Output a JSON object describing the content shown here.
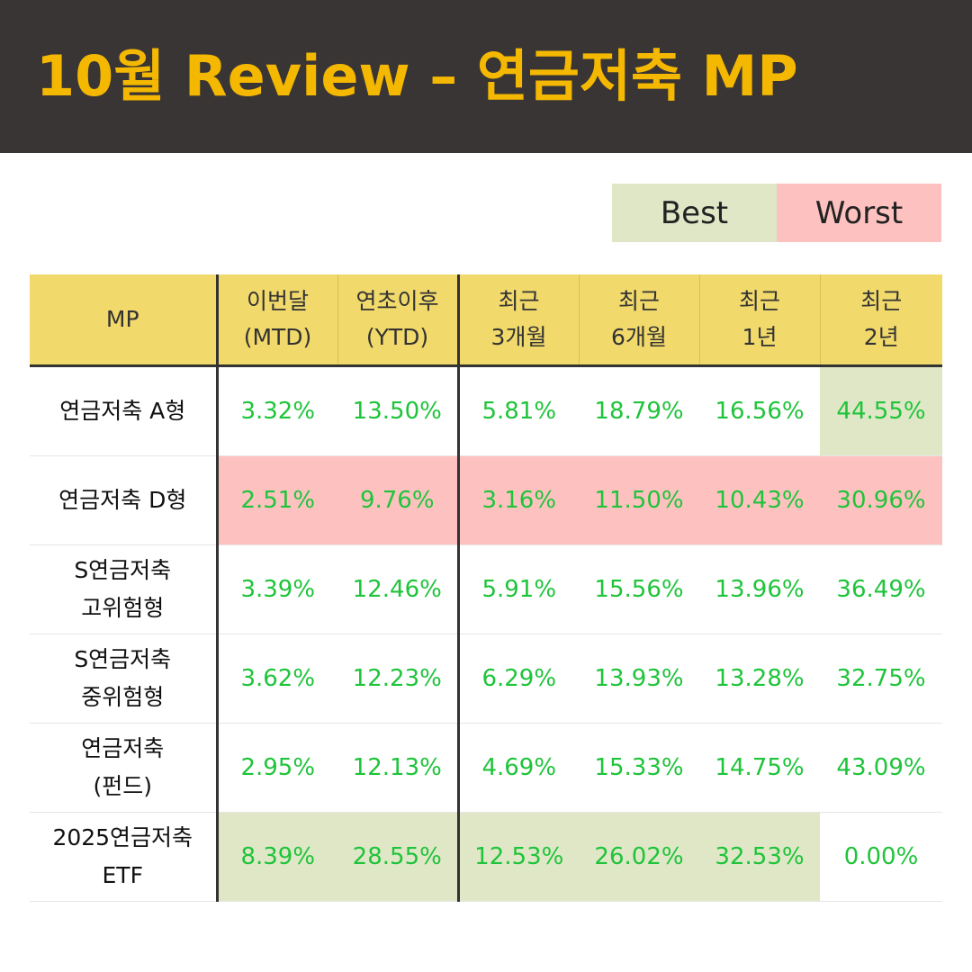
{
  "title": "10월 Review – 연금저축 MP",
  "legend": {
    "best": "Best",
    "worst": "Worst"
  },
  "colors": {
    "best": "#dfe7c7",
    "worst": "#fdc2c0",
    "header_bg": "#f1d96b",
    "value_text": "#1ec43a",
    "title_text": "#f5b800"
  },
  "chart_data": {
    "type": "table",
    "columns": [
      "MP",
      "이번달\n(MTD)",
      "연초이후\n(YTD)",
      "최근\n3개월",
      "최근\n6개월",
      "최근\n1년",
      "최근\n2년"
    ],
    "rows": [
      {
        "mp": "연금저축 A형",
        "values": [
          "3.32%",
          "13.50%",
          "5.81%",
          "18.79%",
          "16.56%",
          "44.55%"
        ],
        "highlight": [
          "",
          "",
          "",
          "",
          "",
          "best"
        ]
      },
      {
        "mp": "연금저축 D형",
        "values": [
          "2.51%",
          "9.76%",
          "3.16%",
          "11.50%",
          "10.43%",
          "30.96%"
        ],
        "highlight": [
          "worst",
          "worst",
          "worst",
          "worst",
          "worst",
          "worst"
        ]
      },
      {
        "mp": "S연금저축\n고위험형",
        "values": [
          "3.39%",
          "12.46%",
          "5.91%",
          "15.56%",
          "13.96%",
          "36.49%"
        ],
        "highlight": [
          "",
          "",
          "",
          "",
          "",
          ""
        ]
      },
      {
        "mp": "S연금저축\n중위험형",
        "values": [
          "3.62%",
          "12.23%",
          "6.29%",
          "13.93%",
          "13.28%",
          "32.75%"
        ],
        "highlight": [
          "",
          "",
          "",
          "",
          "",
          ""
        ]
      },
      {
        "mp": "연금저축\n(펀드)",
        "values": [
          "2.95%",
          "12.13%",
          "4.69%",
          "15.33%",
          "14.75%",
          "43.09%"
        ],
        "highlight": [
          "",
          "",
          "",
          "",
          "",
          ""
        ]
      },
      {
        "mp": "2025연금저축\nETF",
        "values": [
          "8.39%",
          "28.55%",
          "12.53%",
          "26.02%",
          "32.53%",
          "0.00%"
        ],
        "highlight": [
          "best",
          "best",
          "best",
          "best",
          "best",
          ""
        ]
      }
    ]
  }
}
